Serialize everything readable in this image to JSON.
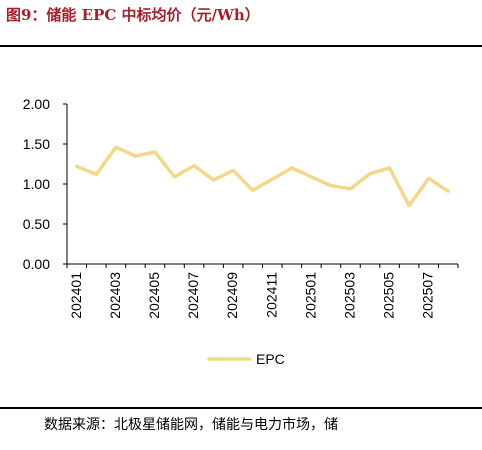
{
  "header": {
    "title": "图9：储能 EPC 中标均价（元/Wh）"
  },
  "footer": {
    "source": "数据来源：北极星储能网，储能与电力市场，储"
  },
  "chart_data": {
    "type": "line",
    "title": "储能 EPC 中标均价（元/Wh）",
    "xlabel": "",
    "ylabel": "",
    "ylim": [
      0,
      2
    ],
    "yticks": [
      "0.00",
      "0.50",
      "1.00",
      "1.50",
      "2.00"
    ],
    "x": [
      "202401",
      "202402",
      "202403",
      "202404",
      "202405",
      "202406",
      "202407",
      "202408",
      "202409",
      "202410",
      "202411",
      "202412",
      "202501",
      "202502",
      "202503",
      "202504",
      "202505",
      "202506",
      "202507",
      "202508"
    ],
    "xtick_labels": [
      "202401",
      "202403",
      "202405",
      "202407",
      "202409",
      "202411",
      "202501",
      "202503",
      "202505",
      "202507"
    ],
    "series": [
      {
        "name": "EPC",
        "color": "#f2d88a",
        "values": [
          1.22,
          1.12,
          1.46,
          1.35,
          1.4,
          1.09,
          1.23,
          1.05,
          1.17,
          0.92,
          1.06,
          1.2,
          1.09,
          0.98,
          0.94,
          1.13,
          1.2,
          0.73,
          1.07,
          0.91
        ]
      }
    ],
    "legend": "bottom-center",
    "grid": false
  }
}
